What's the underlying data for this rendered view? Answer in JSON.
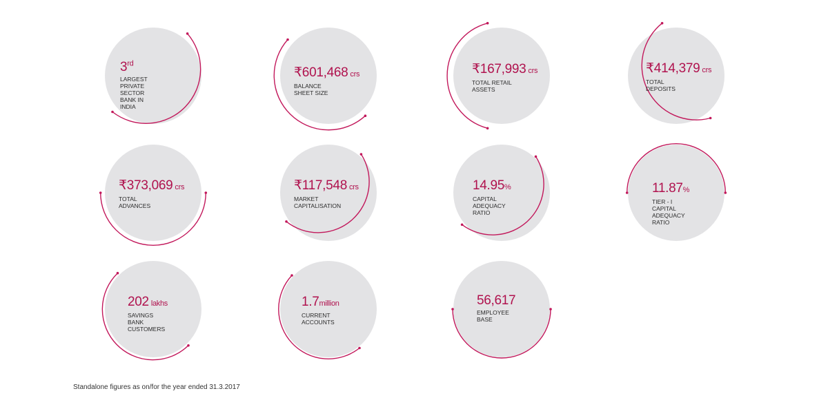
{
  "stats": [
    {
      "value": "3",
      "sup": "rd",
      "label": "LARGEST PRIVATE\nSECTOR BANK IN\nINDIA"
    },
    {
      "currency": "₹",
      "value": "601,468",
      "unit": "crs",
      "label": "BALANCE\nSHEET SIZE"
    },
    {
      "currency": "₹",
      "value": "167,993",
      "unit": "crs",
      "label": "TOTAL RETAIL\nASSETS"
    },
    {
      "currency": "₹",
      "value": "414,379",
      "unit": "crs",
      "label": "TOTAL\nDEPOSITS"
    },
    {
      "currency": "₹",
      "value": "373,069",
      "unit": "crs",
      "label": "TOTAL\nADVANCES"
    },
    {
      "currency": "₹",
      "value": "117,548",
      "unit": "crs",
      "label": "MARKET\nCAPITALISATION"
    },
    {
      "value": "14.95",
      "pct": "%",
      "label": "CAPITAL\nADEQUACY RATIO"
    },
    {
      "value": "11.87",
      "pct": "%",
      "label": "TIER - I CAPITAL\nADEQUACY RATIO"
    },
    {
      "value": "202",
      "unit": "lakhs",
      "label": "SAVINGS BANK\nCUSTOMERS"
    },
    {
      "value": "1.7",
      "unit": "million",
      "label": "CURRENT ACCOUNTS"
    },
    {
      "value": "56,617",
      "label": "EMPLOYEE BASE"
    }
  ],
  "footnote": "Standalone figures as on/for the year ended 31.3.2017",
  "colors": {
    "accent": "#b0124e",
    "circle": "#e3e3e5",
    "text": "#2b2b2b"
  }
}
